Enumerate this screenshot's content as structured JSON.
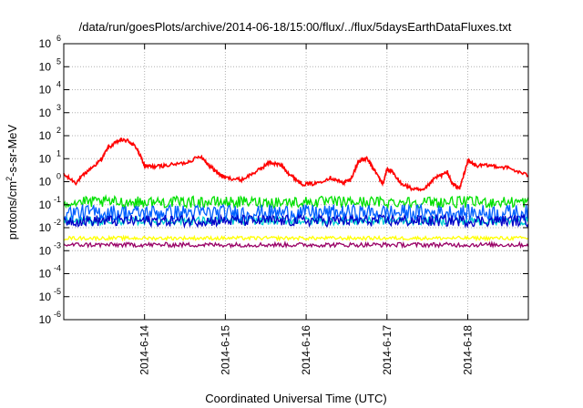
{
  "chart_data": {
    "type": "line",
    "title": "/data/run/goesPlots/archive/2014-06-18/15:00/flux/../flux/5daysEarthDataFluxes.txt",
    "xlabel": "Coordinated Universal Time (UTC)",
    "ylabel_parts": {
      "pre": "protons/cm",
      "sup": "2",
      "post": "-s-sr-MeV"
    },
    "yscale": "log",
    "ylim": [
      1e-06,
      1000000.0
    ],
    "xlim": [
      0,
      5.75
    ],
    "grid": true,
    "y_ticks": [
      {
        "value": 1e-06,
        "base": "10",
        "exp": "-6"
      },
      {
        "value": 1e-05,
        "base": "10",
        "exp": "-5"
      },
      {
        "value": 0.0001,
        "base": "10",
        "exp": "-4"
      },
      {
        "value": 0.001,
        "base": "10",
        "exp": "-3"
      },
      {
        "value": 0.01,
        "base": "10",
        "exp": "-2"
      },
      {
        "value": 0.1,
        "base": "10",
        "exp": "-1"
      },
      {
        "value": 1,
        "base": "10",
        "exp": "0"
      },
      {
        "value": 10,
        "base": "10",
        "exp": "1"
      },
      {
        "value": 100,
        "base": "10",
        "exp": "2"
      },
      {
        "value": 1000,
        "base": "10",
        "exp": "3"
      },
      {
        "value": 10000,
        "base": "10",
        "exp": "4"
      },
      {
        "value": 100000,
        "base": "10",
        "exp": "5"
      },
      {
        "value": 1000000,
        "base": "10",
        "exp": "6"
      }
    ],
    "x_ticks": [
      {
        "value": 1,
        "label": "2014-6-14"
      },
      {
        "value": 2,
        "label": "2014-6-15"
      },
      {
        "value": 3,
        "label": "2014-6-16"
      },
      {
        "value": 4,
        "label": "2014-6-17"
      },
      {
        "value": 5,
        "label": "2014-6-18"
      }
    ],
    "series": [
      {
        "color": "#ff0000",
        "noise": 0.08,
        "x": [
          0,
          0.15,
          0.3,
          0.45,
          0.55,
          0.7,
          0.8,
          0.9,
          1.0,
          1.1,
          1.25,
          1.5,
          1.7,
          1.8,
          1.9,
          2.0,
          2.2,
          2.4,
          2.55,
          2.7,
          2.8,
          2.95,
          3.1,
          3.3,
          3.45,
          3.55,
          3.65,
          3.75,
          3.85,
          3.95,
          4.0,
          4.05,
          4.15,
          4.3,
          4.45,
          4.6,
          4.75,
          4.8,
          4.9,
          5.0,
          5.1,
          5.3,
          5.5,
          5.75
        ],
        "y": [
          2,
          0.9,
          3,
          8,
          30,
          65,
          60,
          30,
          5,
          4.5,
          5,
          6.5,
          13,
          5,
          2.5,
          1.5,
          1.2,
          3,
          7,
          5,
          2,
          0.8,
          0.8,
          1.5,
          0.9,
          1.2,
          8,
          10,
          3,
          0.8,
          3.5,
          3,
          1,
          0.5,
          0.4,
          1.5,
          2.5,
          0.9,
          0.5,
          8,
          5,
          5,
          4,
          1.8
        ]
      },
      {
        "color": "#00e000",
        "base": 0.13,
        "noise": 0.25
      },
      {
        "color": "#00d0d0",
        "base": 0.02,
        "noise": 0.18
      },
      {
        "color": "#0060ff",
        "base": 0.045,
        "noise": 0.35
      },
      {
        "color": "#0000c8",
        "base": 0.02,
        "noise": 0.25
      },
      {
        "color": "#ffff00",
        "base": 0.0035,
        "noise": 0.08
      },
      {
        "color": "#990066",
        "base": 0.0018,
        "noise": 0.1
      }
    ]
  }
}
